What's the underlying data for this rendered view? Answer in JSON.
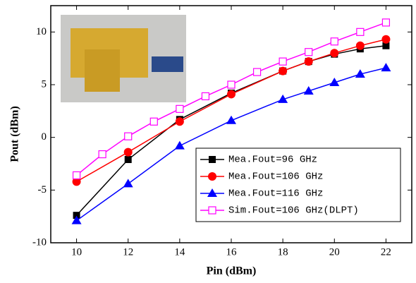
{
  "chart_data": {
    "type": "line",
    "x_label": "Pin (dBm)",
    "y_label": "Pout (dBm)",
    "xlim": [
      9,
      23
    ],
    "xticks": [
      10,
      12,
      14,
      16,
      18,
      20,
      22
    ],
    "ylim": [
      -10,
      12.5
    ],
    "yticks": [
      -10,
      -5,
      0,
      5,
      10
    ],
    "legend": "lower right",
    "series": [
      {
        "name": "Mea.Fout=96 GHz",
        "color": "#000000",
        "marker": "square",
        "x": [
          10,
          12,
          14,
          16,
          18,
          19,
          20,
          21,
          22
        ],
        "values": [
          -7.4,
          -2.1,
          1.7,
          4.2,
          6.3,
          7.2,
          7.9,
          8.4,
          8.7
        ]
      },
      {
        "name": "Mea.Fout=106 GHz",
        "color": "#ff0000",
        "marker": "circle",
        "x": [
          10,
          12,
          14,
          16,
          18,
          19,
          20,
          21,
          22
        ],
        "values": [
          -4.2,
          -1.4,
          1.5,
          4.1,
          6.3,
          7.2,
          8.0,
          8.7,
          9.3
        ]
      },
      {
        "name": "Mea.Fout=116 GHz",
        "color": "#0000ff",
        "marker": "triangle",
        "x": [
          10,
          12,
          14,
          16,
          18,
          19,
          20,
          21,
          22
        ],
        "values": [
          -7.9,
          -4.4,
          -0.8,
          1.6,
          3.6,
          4.4,
          5.2,
          6.0,
          6.6
        ]
      },
      {
        "name": "Sim.Fout=106 GHz(DLPT)",
        "color": "#ff00ff",
        "marker": "open-square",
        "x": [
          10,
          11,
          12,
          13,
          14,
          15,
          16,
          17,
          18,
          19,
          20,
          21,
          22
        ],
        "values": [
          -3.6,
          -1.6,
          0.1,
          1.5,
          2.7,
          3.9,
          5.0,
          6.2,
          7.2,
          8.1,
          9.1,
          10.0,
          10.9
        ]
      }
    ]
  }
}
